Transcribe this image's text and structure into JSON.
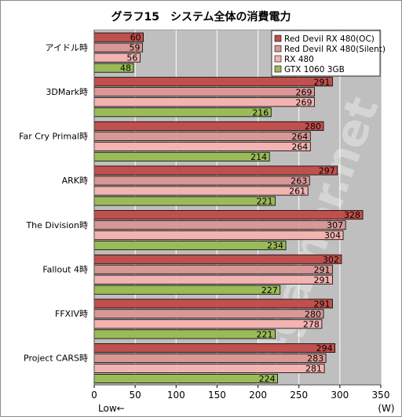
{
  "chart_data": {
    "type": "bar",
    "orientation": "horizontal",
    "title": "グラフ15　システム全体の消費電力",
    "categories": [
      "アイドル時",
      "3DMark時",
      "Far Cry Primal時",
      "ARK時",
      "The Division時",
      "Fallout 4時",
      "FFXIV時",
      "Project CARS時"
    ],
    "series": [
      {
        "name": "Red Devil RX 480(OC)",
        "color": "#c0504d",
        "values": [
          60,
          291,
          280,
          297,
          328,
          302,
          291,
          294
        ]
      },
      {
        "name": "Red Devil RX 480(Silent)",
        "color": "#d99795",
        "values": [
          59,
          269,
          264,
          263,
          307,
          291,
          280,
          283
        ]
      },
      {
        "name": "RX 480",
        "color": "#f2b3b1",
        "values": [
          56,
          269,
          264,
          261,
          304,
          291,
          278,
          281
        ]
      },
      {
        "name": "GTX 1060 3GB",
        "color": "#9bbb59",
        "values": [
          48,
          216,
          214,
          221,
          234,
          227,
          221,
          224
        ]
      }
    ],
    "xlim": [
      0,
      350
    ],
    "xticks": [
      0,
      50,
      100,
      150,
      200,
      250,
      300,
      350
    ],
    "xunit": "(W)",
    "low_label": "Low←",
    "grid": true,
    "legend_position": "top-right",
    "watermark": "4gamer.net",
    "plot_bg": "#bfbfbf"
  }
}
